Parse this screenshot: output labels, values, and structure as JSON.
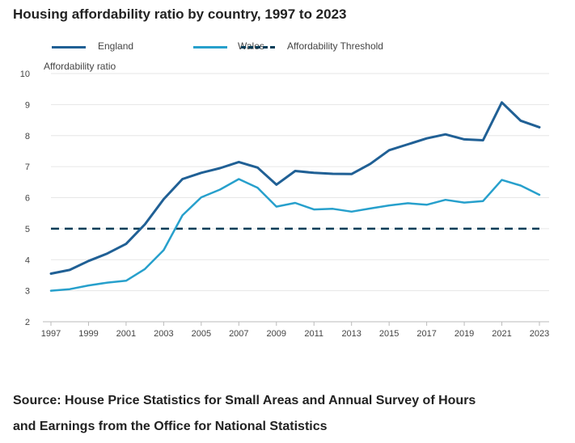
{
  "title": "Housing affordability ratio by country, 1997 to 2023",
  "source_line1": "Source: House Price Statistics for Small Areas and Annual Survey of Hours",
  "source_line2": "and Earnings from the Office for National Statistics",
  "colors": {
    "england": "#206095",
    "wales": "#27a0cc",
    "threshold": "#003c57",
    "grid": "#e6e6e6",
    "axis": "#bbbbbb",
    "tick_text": "#444444"
  },
  "chart_data": {
    "type": "line",
    "title": "Housing affordability ratio by country, 1997 to 2023",
    "xlabel": "",
    "ylabel": "Affordability ratio",
    "ylim": [
      2,
      10
    ],
    "xlim": [
      1997,
      2023
    ],
    "yticks": [
      2,
      3,
      4,
      5,
      6,
      7,
      8,
      9,
      10
    ],
    "xticks": [
      1997,
      1999,
      2001,
      2003,
      2005,
      2007,
      2009,
      2011,
      2013,
      2015,
      2017,
      2019,
      2021,
      2023
    ],
    "grid": true,
    "legend_position": "top-left",
    "x": [
      1997,
      1998,
      1999,
      2000,
      2001,
      2002,
      2003,
      2004,
      2005,
      2006,
      2007,
      2008,
      2009,
      2010,
      2011,
      2012,
      2013,
      2014,
      2015,
      2016,
      2017,
      2018,
      2019,
      2020,
      2021,
      2022,
      2023
    ],
    "series": [
      {
        "name": "England",
        "style": "solid",
        "values": [
          3.55,
          3.67,
          3.96,
          4.2,
          4.51,
          5.14,
          5.95,
          6.6,
          6.8,
          6.95,
          7.15,
          6.97,
          6.42,
          6.86,
          6.8,
          6.77,
          6.76,
          7.09,
          7.53,
          7.72,
          7.91,
          8.04,
          7.88,
          7.85,
          9.07,
          8.48,
          8.27
        ]
      },
      {
        "name": "Wales",
        "style": "solid",
        "values": [
          3.0,
          3.05,
          3.17,
          3.26,
          3.32,
          3.7,
          4.31,
          5.43,
          6.01,
          6.26,
          6.6,
          6.32,
          5.71,
          5.83,
          5.62,
          5.64,
          5.55,
          5.65,
          5.75,
          5.82,
          5.77,
          5.93,
          5.84,
          5.89,
          6.57,
          6.39,
          6.09
        ]
      },
      {
        "name": "Affordability Threshold",
        "style": "dashed",
        "values": [
          5,
          5,
          5,
          5,
          5,
          5,
          5,
          5,
          5,
          5,
          5,
          5,
          5,
          5,
          5,
          5,
          5,
          5,
          5,
          5,
          5,
          5,
          5,
          5,
          5,
          5,
          5
        ]
      }
    ]
  }
}
